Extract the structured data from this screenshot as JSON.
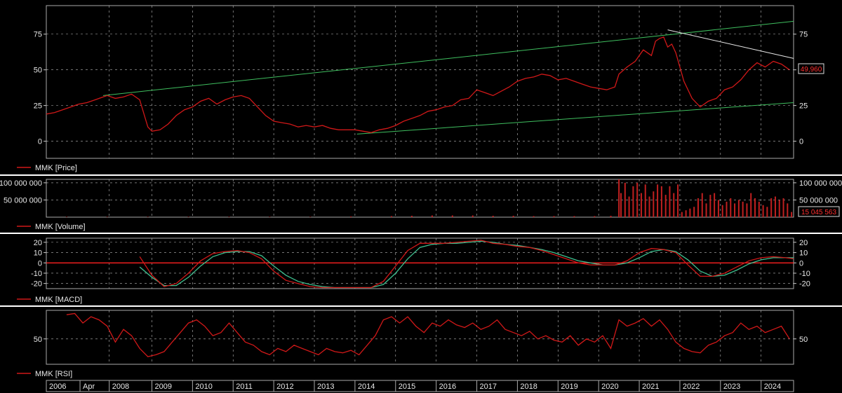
{
  "colors": {
    "background": "#000000",
    "price_line": "#d01818",
    "trend_line": "#3fbf5f",
    "resistance_line": "#e8e8e8",
    "volume_bar": "#c02020",
    "macd_line": "#d01818",
    "signal_line": "#3fbf8f",
    "zero_line": "#ff2020",
    "separator": "#ffffff",
    "grid": "#bbbbbb"
  },
  "panels": {
    "price": {
      "legend": "MMK [Price]",
      "last_value": "49,960",
      "ticks_left": [
        "75",
        "50",
        "25",
        "0"
      ],
      "ticks_right": [
        "75",
        "50",
        "25",
        "0"
      ],
      "tick_values": [
        75,
        50,
        25,
        0
      ],
      "ylim": [
        -12,
        95
      ]
    },
    "volume": {
      "legend": "MMK [Volume]",
      "last_value": "15 045 563",
      "ticks_left": [
        "100 000 000",
        "50 000 000"
      ],
      "ticks_right": [
        "100 000 000",
        "50 000 000"
      ],
      "tick_values": [
        100000000,
        50000000
      ],
      "ylim": [
        0,
        110000000
      ]
    },
    "macd": {
      "legend": "MMK [MACD]",
      "ticks_left": [
        "20",
        "10",
        "0",
        "-10",
        "-20"
      ],
      "ticks_right": [
        "20",
        "10",
        "0",
        "-10",
        "-20"
      ],
      "tick_values": [
        20,
        10,
        0,
        -10,
        -20
      ],
      "ylim": [
        -25,
        24
      ]
    },
    "rsi": {
      "legend": "MMK [RSI]",
      "ticks_left": [
        "50"
      ],
      "ticks_right": [
        "50"
      ],
      "tick_values": [
        50
      ],
      "ylim": [
        10,
        95
      ]
    }
  },
  "time_axis": {
    "labels": [
      {
        "text": "2006",
        "year": 2006.0
      },
      {
        "text": "Apr",
        "year": 2006.83
      },
      {
        "text": "2008",
        "year": 2007.55
      },
      {
        "text": "2009",
        "year": 2008.6
      },
      {
        "text": "2010",
        "year": 2009.6
      },
      {
        "text": "2011",
        "year": 2010.6
      },
      {
        "text": "2012",
        "year": 2011.6
      },
      {
        "text": "2013",
        "year": 2012.6
      },
      {
        "text": "2014",
        "year": 2013.6
      },
      {
        "text": "2015",
        "year": 2014.6
      },
      {
        "text": "2016",
        "year": 2015.6
      },
      {
        "text": "2017",
        "year": 2016.6
      },
      {
        "text": "2018",
        "year": 2017.6
      },
      {
        "text": "2019",
        "year": 2018.6
      },
      {
        "text": "2020",
        "year": 2019.6
      },
      {
        "text": "2021",
        "year": 2020.6
      },
      {
        "text": "2022",
        "year": 2021.6
      },
      {
        "text": "2023",
        "year": 2022.6
      },
      {
        "text": "2024",
        "year": 2023.6
      }
    ],
    "xlim": [
      2006.0,
      2024.4
    ]
  },
  "chart_data": [
    {
      "type": "line",
      "title": "",
      "series": [
        {
          "name": "MMK [Price]",
          "x": [
            2006.0,
            2006.2,
            2006.4,
            2006.6,
            2006.8,
            2007.0,
            2007.2,
            2007.4,
            2007.5,
            2007.7,
            2007.9,
            2008.1,
            2008.3,
            2008.5,
            2008.6,
            2008.8,
            2009.0,
            2009.2,
            2009.4,
            2009.6,
            2009.8,
            2010.0,
            2010.2,
            2010.4,
            2010.6,
            2010.8,
            2011.0,
            2011.2,
            2011.4,
            2011.6,
            2011.8,
            2012.0,
            2012.2,
            2012.4,
            2012.6,
            2012.8,
            2013.0,
            2013.2,
            2013.4,
            2013.6,
            2013.8,
            2014.0,
            2014.2,
            2014.4,
            2014.6,
            2014.8,
            2015.0,
            2015.2,
            2015.4,
            2015.6,
            2015.8,
            2016.0,
            2016.2,
            2016.4,
            2016.6,
            2016.8,
            2017.0,
            2017.2,
            2017.4,
            2017.6,
            2017.8,
            2018.0,
            2018.2,
            2018.4,
            2018.6,
            2018.8,
            2019.0,
            2019.2,
            2019.4,
            2019.6,
            2019.8,
            2020.0,
            2020.1,
            2020.3,
            2020.5,
            2020.7,
            2020.9,
            2021.0,
            2021.1,
            2021.2,
            2021.3,
            2021.4,
            2021.5,
            2021.7,
            2021.9,
            2022.1,
            2022.3,
            2022.5,
            2022.7,
            2022.9,
            2023.1,
            2023.3,
            2023.5,
            2023.7,
            2023.9,
            2024.1,
            2024.3
          ],
          "values": [
            19,
            20,
            22,
            24,
            26,
            27,
            29,
            31,
            32,
            30,
            31,
            33,
            29,
            10,
            7,
            8,
            12,
            18,
            22,
            24,
            28,
            30,
            26,
            29,
            31,
            32,
            30,
            24,
            18,
            14,
            13,
            12,
            10,
            11,
            10,
            11,
            9,
            8,
            8,
            8,
            7,
            6,
            8,
            9,
            11,
            14,
            16,
            18,
            21,
            22,
            24,
            25,
            29,
            30,
            36,
            34,
            32,
            35,
            38,
            42,
            44,
            45,
            47,
            46,
            43,
            44,
            42,
            40,
            38,
            37,
            36,
            38,
            47,
            52,
            56,
            64,
            60,
            70,
            72,
            73,
            66,
            68,
            62,
            42,
            30,
            24,
            28,
            30,
            36,
            38,
            43,
            50,
            55,
            52,
            56,
            54,
            50
          ]
        }
      ],
      "xlabel": "",
      "ylabel": "",
      "xlim": [
        2006.0,
        2024.4
      ],
      "ylim": [
        -12,
        95
      ],
      "trend_lines": [
        {
          "name": "upper-channel",
          "x": [
            2007.4,
            2024.4
          ],
          "y": [
            32,
            84
          ]
        },
        {
          "name": "lower-channel",
          "x": [
            2013.65,
            2024.4
          ],
          "y": [
            5,
            27
          ]
        },
        {
          "name": "resistance",
          "x": [
            2021.3,
            2024.4
          ],
          "y": [
            78,
            58
          ]
        }
      ],
      "grid": true
    },
    {
      "type": "bar",
      "title": "",
      "series": [
        {
          "name": "MMK [Volume]",
          "x": [
            2006.5,
            2007.5,
            2008.5,
            2009.5,
            2010.5,
            2011.5,
            2012.5,
            2013.5,
            2014.5,
            2015.0,
            2015.5,
            2016.0,
            2016.5,
            2017.0,
            2017.5,
            2018.0,
            2018.5,
            2019.0,
            2019.5,
            2019.9,
            2020.1,
            2020.15,
            2020.25,
            2020.35,
            2020.45,
            2020.55,
            2020.65,
            2020.75,
            2020.85,
            2020.95,
            2021.05,
            2021.15,
            2021.25,
            2021.35,
            2021.45,
            2021.55,
            2021.65,
            2021.75,
            2021.85,
            2021.95,
            2022.05,
            2022.15,
            2022.25,
            2022.35,
            2022.45,
            2022.55,
            2022.65,
            2022.75,
            2022.85,
            2022.95,
            2023.05,
            2023.15,
            2023.25,
            2023.35,
            2023.45,
            2023.55,
            2023.65,
            2023.75,
            2023.85,
            2023.95,
            2024.05,
            2024.15,
            2024.25,
            2024.35
          ],
          "values": [
            1000000,
            1000000,
            1000000,
            1000000,
            1000000,
            1000000,
            1000000,
            2000000,
            3000000,
            4000000,
            5000000,
            5000000,
            5000000,
            4000000,
            4000000,
            3000000,
            3000000,
            3000000,
            3000000,
            4000000,
            110000000,
            70000000,
            100000000,
            60000000,
            90000000,
            100000000,
            70000000,
            95000000,
            60000000,
            75000000,
            95000000,
            90000000,
            65000000,
            90000000,
            70000000,
            95000000,
            15000000,
            20000000,
            25000000,
            30000000,
            55000000,
            70000000,
            40000000,
            65000000,
            70000000,
            50000000,
            35000000,
            45000000,
            55000000,
            40000000,
            50000000,
            45000000,
            40000000,
            70000000,
            55000000,
            45000000,
            35000000,
            30000000,
            55000000,
            60000000,
            50000000,
            55000000,
            40000000,
            15045563
          ]
        }
      ],
      "xlabel": "",
      "ylabel": "",
      "ylim": [
        0,
        110000000
      ],
      "grid": true
    },
    {
      "type": "line",
      "title": "",
      "series": [
        {
          "name": "MMK [MACD]",
          "x": [
            2008.3,
            2008.6,
            2008.9,
            2009.2,
            2009.5,
            2009.8,
            2010.1,
            2010.4,
            2010.7,
            2011.0,
            2011.3,
            2011.6,
            2011.9,
            2012.2,
            2012.5,
            2012.8,
            2013.1,
            2013.4,
            2013.7,
            2014.0,
            2014.3,
            2014.6,
            2014.9,
            2015.2,
            2015.5,
            2015.8,
            2016.1,
            2016.4,
            2016.7,
            2017.0,
            2017.3,
            2017.6,
            2017.9,
            2018.2,
            2018.5,
            2018.8,
            2019.1,
            2019.4,
            2019.7,
            2020.0,
            2020.3,
            2020.6,
            2020.9,
            2021.2,
            2021.5,
            2021.8,
            2022.1,
            2022.4,
            2022.7,
            2023.0,
            2023.3,
            2023.6,
            2023.9,
            2024.2,
            2024.4
          ],
          "values": [
            6,
            -12,
            -23,
            -20,
            -10,
            2,
            9,
            11,
            12,
            10,
            4,
            -8,
            -17,
            -20,
            -23,
            -24,
            -24,
            -24,
            -24,
            -24,
            -18,
            -3,
            12,
            19,
            19,
            19,
            20,
            21,
            22,
            19,
            18,
            16,
            15,
            12,
            8,
            4,
            0,
            -2,
            -2,
            -2,
            2,
            10,
            14,
            13,
            10,
            -2,
            -13,
            -13,
            -10,
            -4,
            2,
            5,
            6,
            5,
            4
          ]
        },
        {
          "name": "signal",
          "x": [
            2008.3,
            2008.6,
            2008.9,
            2009.2,
            2009.5,
            2009.8,
            2010.1,
            2010.4,
            2010.7,
            2011.0,
            2011.3,
            2011.6,
            2011.9,
            2012.2,
            2012.5,
            2012.8,
            2013.1,
            2013.4,
            2013.7,
            2014.0,
            2014.3,
            2014.6,
            2014.9,
            2015.2,
            2015.5,
            2015.8,
            2016.1,
            2016.4,
            2016.7,
            2017.0,
            2017.3,
            2017.6,
            2017.9,
            2018.2,
            2018.5,
            2018.8,
            2019.1,
            2019.4,
            2019.7,
            2020.0,
            2020.3,
            2020.6,
            2020.9,
            2021.2,
            2021.5,
            2021.8,
            2022.1,
            2022.4,
            2022.7,
            2023.0,
            2023.3,
            2023.6,
            2023.9,
            2024.2,
            2024.4
          ],
          "values": [
            -4,
            -14,
            -22,
            -22,
            -14,
            -3,
            6,
            10,
            11,
            11,
            7,
            -3,
            -12,
            -18,
            -21,
            -23,
            -24,
            -24,
            -24,
            -24,
            -21,
            -10,
            4,
            15,
            18,
            19,
            19,
            20,
            21,
            20,
            18,
            17,
            15,
            13,
            10,
            6,
            2,
            0,
            -2,
            -2,
            0,
            5,
            11,
            13,
            11,
            3,
            -8,
            -13,
            -12,
            -7,
            -1,
            3,
            5,
            5,
            5
          ]
        }
      ],
      "xlabel": "",
      "ylabel": "",
      "ylim": [
        -25,
        24
      ],
      "grid": true
    },
    {
      "type": "line",
      "title": "",
      "series": [
        {
          "name": "MMK [RSI]",
          "x": [
            2006.5,
            2006.7,
            2006.9,
            2007.1,
            2007.3,
            2007.5,
            2007.7,
            2007.9,
            2008.1,
            2008.3,
            2008.5,
            2008.7,
            2008.9,
            2009.1,
            2009.3,
            2009.5,
            2009.7,
            2009.9,
            2010.1,
            2010.3,
            2010.5,
            2010.7,
            2010.9,
            2011.1,
            2011.3,
            2011.5,
            2011.7,
            2011.9,
            2012.1,
            2012.3,
            2012.5,
            2012.7,
            2012.9,
            2013.1,
            2013.3,
            2013.5,
            2013.7,
            2013.9,
            2014.1,
            2014.3,
            2014.5,
            2014.7,
            2014.9,
            2015.1,
            2015.3,
            2015.5,
            2015.7,
            2015.9,
            2016.1,
            2016.3,
            2016.5,
            2016.7,
            2016.9,
            2017.1,
            2017.3,
            2017.5,
            2017.7,
            2017.9,
            2018.1,
            2018.3,
            2018.5,
            2018.7,
            2018.9,
            2019.1,
            2019.3,
            2019.5,
            2019.7,
            2019.9,
            2020.1,
            2020.3,
            2020.5,
            2020.7,
            2020.9,
            2021.1,
            2021.3,
            2021.5,
            2021.7,
            2021.9,
            2022.1,
            2022.3,
            2022.5,
            2022.7,
            2022.9,
            2023.1,
            2023.3,
            2023.5,
            2023.7,
            2023.9,
            2024.1,
            2024.3
          ],
          "values": [
            88,
            90,
            75,
            85,
            80,
            70,
            45,
            65,
            55,
            35,
            22,
            25,
            30,
            45,
            60,
            75,
            80,
            70,
            55,
            60,
            75,
            60,
            45,
            40,
            30,
            25,
            35,
            30,
            40,
            35,
            30,
            25,
            35,
            30,
            28,
            32,
            25,
            40,
            55,
            80,
            85,
            75,
            85,
            70,
            60,
            75,
            70,
            80,
            72,
            68,
            75,
            65,
            70,
            80,
            65,
            60,
            55,
            62,
            50,
            55,
            48,
            45,
            55,
            40,
            50,
            45,
            55,
            35,
            80,
            70,
            75,
            82,
            70,
            80,
            65,
            45,
            35,
            30,
            28,
            40,
            45,
            55,
            60,
            75,
            65,
            70,
            60,
            65,
            70,
            50
          ]
        }
      ],
      "xlabel": "",
      "ylabel": "",
      "ylim": [
        10,
        95
      ],
      "grid": true
    }
  ]
}
